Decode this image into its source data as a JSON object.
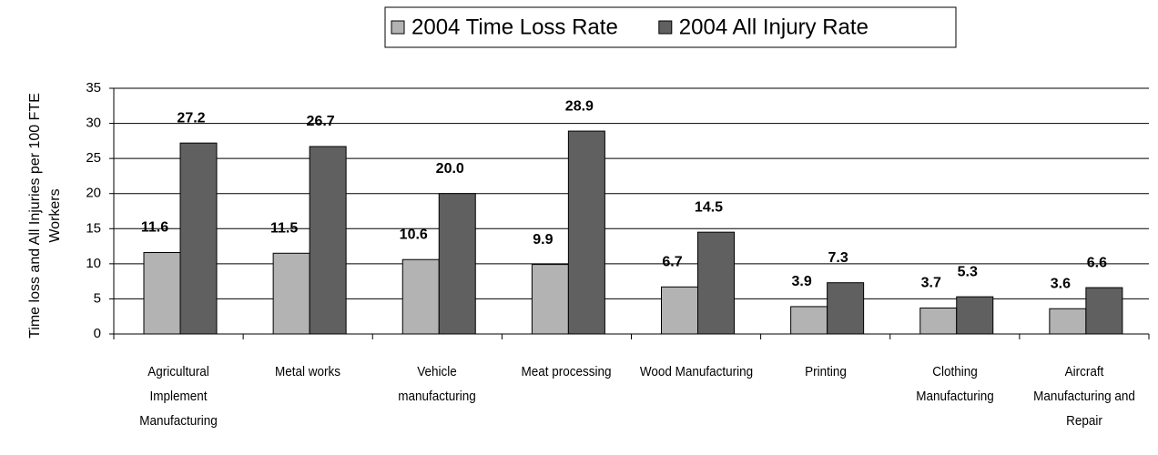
{
  "chart_data": {
    "type": "bar",
    "y_label": "Time loss and All Injuries per 100 FTE Workers",
    "categories": [
      "Agricultural Implement Manufacturing",
      "Metal works",
      "Vehicle manufacturing",
      "Meat processing",
      "Wood Manufacturing",
      "Printing",
      "Clothing Manufacturing",
      "Aircraft Manufacturing and Repair"
    ],
    "series": [
      {
        "name": "2004 Time Loss Rate",
        "color": "#b3b3b3",
        "values": [
          11.6,
          11.5,
          10.6,
          9.9,
          6.7,
          3.9,
          3.7,
          3.6
        ]
      },
      {
        "name": "2004 All Injury Rate",
        "color": "#606060",
        "values": [
          27.2,
          26.7,
          20.0,
          28.9,
          14.5,
          7.3,
          5.3,
          6.6
        ],
        "value_labels": [
          "27.2",
          "26.7",
          "20.0",
          "28.9",
          "14.5",
          "7.3",
          "5.3",
          "6.6"
        ]
      }
    ],
    "ylim": [
      0,
      35
    ],
    "yticks": [
      0,
      5,
      10,
      15,
      20,
      25,
      30,
      35
    ],
    "grid": true,
    "legend": "top"
  }
}
